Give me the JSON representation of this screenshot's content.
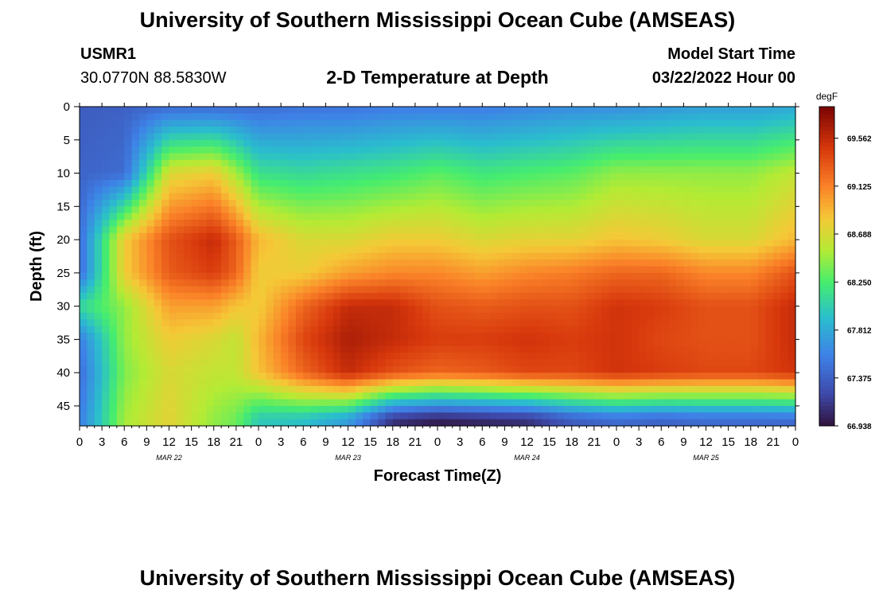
{
  "titles": {
    "main": "University of Southern Mississippi Ocean Cube (AMSEAS)",
    "repeat": "University of Southern Mississippi Ocean Cube (AMSEAS)"
  },
  "station": {
    "id": "USMR1",
    "coords": "30.0770N  88.5830W"
  },
  "model": {
    "label": "Model Start Time",
    "value": "03/22/2022 Hour 00"
  },
  "chart_data": {
    "type": "heatmap",
    "title": "2-D Temperature at Depth",
    "xlabel": "Forecast Time(Z)",
    "ylabel": "Depth (ft)",
    "x_tick_labels": [
      "0",
      "3",
      "6",
      "9",
      "12",
      "15",
      "18",
      "21",
      "0",
      "3",
      "6",
      "9",
      "12",
      "15",
      "18",
      "21",
      "0",
      "3",
      "6",
      "9",
      "12",
      "15",
      "18",
      "21",
      "0",
      "3",
      "6",
      "9",
      "12",
      "15",
      "18",
      "21",
      "0"
    ],
    "date_labels": [
      {
        "label": "MAR 22",
        "hour": 12
      },
      {
        "label": "MAR 23",
        "hour": 36
      },
      {
        "label": "MAR 24",
        "hour": 60
      },
      {
        "label": "MAR 25",
        "hour": 84
      }
    ],
    "xlim_hours": [
      0,
      96
    ],
    "y_ticks": [
      0,
      5,
      10,
      15,
      20,
      25,
      30,
      35,
      40,
      45
    ],
    "ylim": [
      0,
      48
    ],
    "colorbar": {
      "unit": "degF",
      "ticks": [
        "69.562",
        "69.125",
        "68.688",
        "68.250",
        "67.812",
        "67.375",
        "66.938"
      ],
      "min": 66.938,
      "max": 69.85
    },
    "hours": [
      0,
      6,
      12,
      18,
      21,
      24,
      30,
      36,
      42,
      48,
      54,
      60,
      66,
      72,
      78,
      84,
      90,
      96
    ],
    "depths": [
      0,
      10,
      20,
      25,
      30,
      35,
      40,
      47
    ],
    "values": [
      [
        67.35,
        67.4,
        67.45,
        67.45,
        68.1,
        67.55,
        67.45,
        67.55
      ],
      [
        67.38,
        67.45,
        68.8,
        68.8,
        68.45,
        68.45,
        68.4,
        68.5
      ],
      [
        67.45,
        68.7,
        69.35,
        69.3,
        69.0,
        68.8,
        68.7,
        68.75
      ],
      [
        67.45,
        68.8,
        69.55,
        69.45,
        69.0,
        68.7,
        68.6,
        68.45
      ],
      [
        67.45,
        68.5,
        69.3,
        69.25,
        68.85,
        68.6,
        68.6,
        68.35
      ],
      [
        67.45,
        68.15,
        68.9,
        68.8,
        68.8,
        68.9,
        68.85,
        68.0
      ],
      [
        67.5,
        68.1,
        68.7,
        68.8,
        69.25,
        69.4,
        69.25,
        67.95
      ],
      [
        67.5,
        68.15,
        68.7,
        69.0,
        69.55,
        69.65,
        69.55,
        67.75
      ],
      [
        67.55,
        68.2,
        68.8,
        69.1,
        69.55,
        69.55,
        69.35,
        67.1
      ],
      [
        67.55,
        68.3,
        68.8,
        69.1,
        69.35,
        69.45,
        69.25,
        67.0
      ],
      [
        67.55,
        68.2,
        68.7,
        69.0,
        69.3,
        69.45,
        69.3,
        67.05
      ],
      [
        67.6,
        68.25,
        68.75,
        69.1,
        69.35,
        69.5,
        69.4,
        67.1
      ],
      [
        67.65,
        68.3,
        68.75,
        69.15,
        69.35,
        69.45,
        69.4,
        67.35
      ],
      [
        67.65,
        68.45,
        68.85,
        69.25,
        69.5,
        69.5,
        69.5,
        67.45
      ],
      [
        67.7,
        68.45,
        68.8,
        69.25,
        69.45,
        69.4,
        69.45,
        67.4
      ],
      [
        67.75,
        68.45,
        68.7,
        69.1,
        69.35,
        69.35,
        69.4,
        67.45
      ],
      [
        67.75,
        68.45,
        68.7,
        69.1,
        69.35,
        69.35,
        69.4,
        67.45
      ],
      [
        67.8,
        68.6,
        68.9,
        69.35,
        69.55,
        69.55,
        69.5,
        67.45
      ]
    ]
  }
}
